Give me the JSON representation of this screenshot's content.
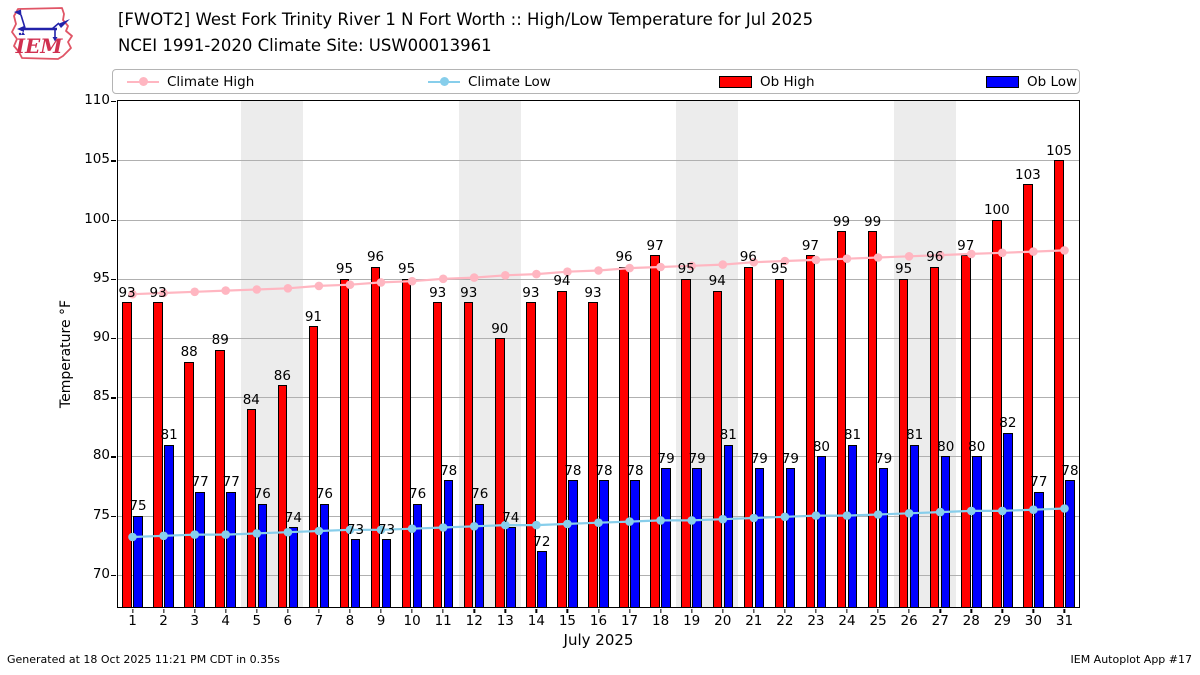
{
  "header": {
    "logo_text": "IEM",
    "title_line1": "[FWOT2] West Fork Trinity River 1 N Fort Worth :: High/Low Temperature for Jul 2025",
    "title_line2": "NCEI 1991-2020 Climate Site: USW00013961"
  },
  "legend": [
    {
      "label": "Climate High",
      "type": "line",
      "color": "#FFB6C1"
    },
    {
      "label": "Climate Low",
      "type": "line",
      "color": "#87CEEB"
    },
    {
      "label": "Ob High",
      "type": "rect",
      "color": "#FF0000"
    },
    {
      "label": "Ob Low",
      "type": "rect",
      "color": "#0000FF"
    }
  ],
  "footer": {
    "left": "Generated at 18 Oct 2025 11:21 PM CDT in 0.35s",
    "right": "IEM Autoplot App #17"
  },
  "chart_data": {
    "type": "bar",
    "title": "[FWOT2] West Fork Trinity River 1 N Fort Worth :: High/Low Temperature for Jul 2025",
    "subtitle": "NCEI 1991-2020 Climate Site: USW00013961",
    "xlabel": "July 2025",
    "ylabel": "Temperature °F",
    "ylim": [
      67.2,
      110.1
    ],
    "yticks": [
      70,
      75,
      80,
      85,
      90,
      95,
      100,
      105,
      110
    ],
    "x_days": [
      1,
      2,
      3,
      4,
      5,
      6,
      7,
      8,
      9,
      10,
      11,
      12,
      13,
      14,
      15,
      16,
      17,
      18,
      19,
      20,
      21,
      22,
      23,
      24,
      25,
      26,
      27,
      28,
      29,
      30,
      31
    ],
    "grid": "horizontal",
    "legend_position": "top",
    "weekend_shading_days": [
      [
        5,
        6
      ],
      [
        12,
        13
      ],
      [
        19,
        20
      ],
      [
        26,
        27
      ]
    ],
    "series": [
      {
        "name": "Ob High",
        "type": "bar",
        "color": "#FF0000",
        "values": [
          93,
          93,
          88,
          89,
          84,
          86,
          91,
          95,
          96,
          95,
          93,
          93,
          90,
          93,
          94,
          93,
          96,
          97,
          95,
          94,
          96,
          95,
          97,
          99,
          99,
          95,
          96,
          97,
          100,
          103,
          105
        ]
      },
      {
        "name": "Ob Low",
        "type": "bar",
        "color": "#0000FF",
        "values": [
          75,
          81,
          77,
          77,
          76,
          74,
          76,
          73,
          73,
          76,
          78,
          76,
          74,
          72,
          78,
          78,
          78,
          79,
          79,
          81,
          79,
          79,
          80,
          81,
          79,
          81,
          80,
          80,
          82,
          77,
          78
        ]
      },
      {
        "name": "Climate High",
        "type": "line",
        "color": "#FFB6C1",
        "values": [
          93.7,
          93.8,
          93.9,
          94.0,
          94.1,
          94.2,
          94.4,
          94.5,
          94.7,
          94.8,
          95.0,
          95.1,
          95.3,
          95.4,
          95.6,
          95.7,
          95.9,
          96.0,
          96.1,
          96.2,
          96.4,
          96.5,
          96.6,
          96.7,
          96.8,
          96.9,
          97.0,
          97.1,
          97.2,
          97.3,
          97.4
        ]
      },
      {
        "name": "Climate Low",
        "type": "line",
        "color": "#87CEEB",
        "values": [
          73.2,
          73.3,
          73.4,
          73.4,
          73.5,
          73.6,
          73.7,
          73.8,
          73.8,
          73.9,
          74.0,
          74.1,
          74.2,
          74.2,
          74.3,
          74.4,
          74.5,
          74.6,
          74.6,
          74.7,
          74.8,
          74.9,
          75.0,
          75.0,
          75.1,
          75.2,
          75.3,
          75.4,
          75.4,
          75.5,
          75.6
        ]
      }
    ]
  }
}
